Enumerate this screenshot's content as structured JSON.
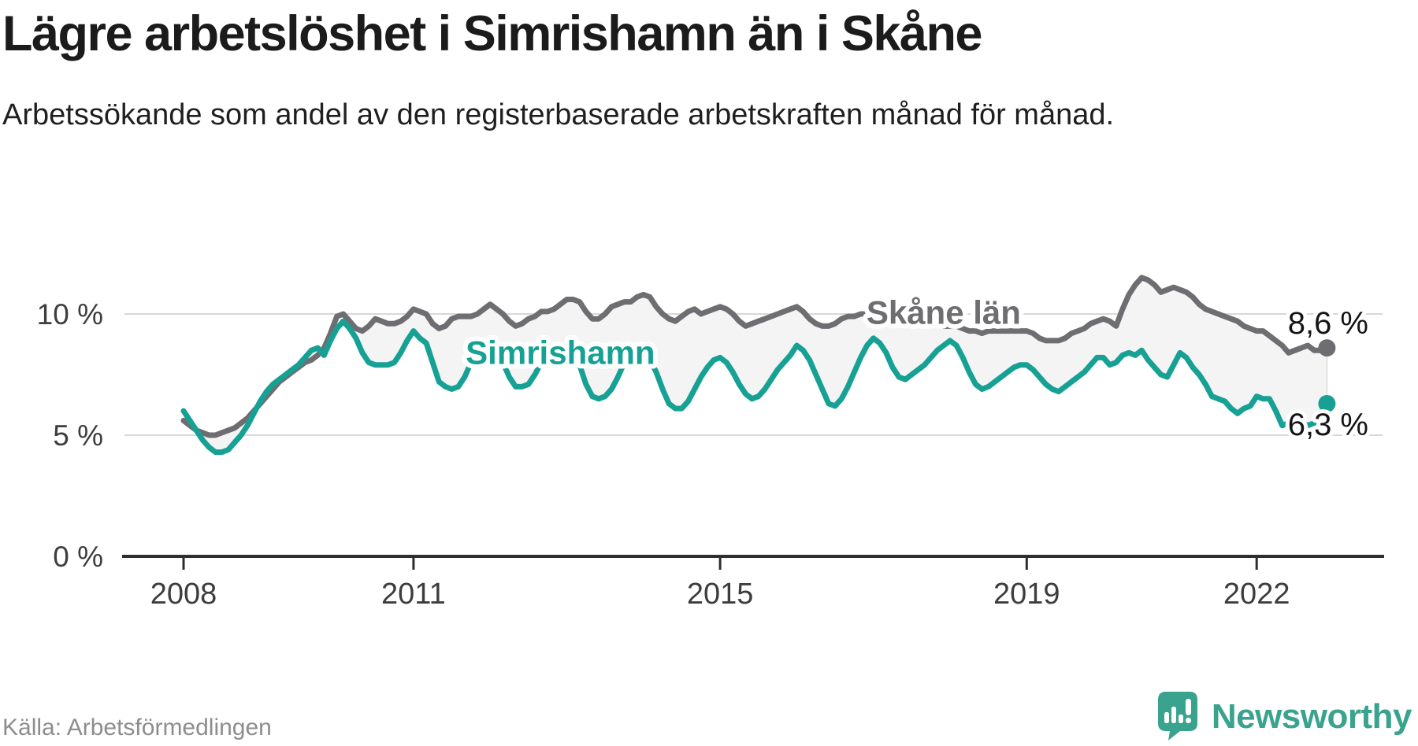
{
  "page": {
    "title": "Lägre arbetslöshet i Simrishamn än i Skåne",
    "subtitle": "Arbetssökande som andel av den registerbaserade arbetskraften månad för månad.",
    "source": "Källa: Arbetsförmedlingen",
    "brand": "Newsworthy",
    "logo_icon": "newsworthy-speech-bubble-chart-icon"
  },
  "chart_data": {
    "type": "line",
    "unit": "%",
    "frequency": "monthly",
    "start_year": 2008,
    "x_tick_years": [
      2008,
      2011,
      2015,
      2019,
      2022
    ],
    "y_ticks": [
      0,
      5,
      10
    ],
    "y_tick_labels": [
      "0 %",
      "5 %",
      "10 %"
    ],
    "ylim": [
      0,
      13
    ],
    "grid": "horizontal",
    "band_fill": "#f4f4f5",
    "axis_color": "#2e2e2e",
    "grid_color": "#d8d8d8",
    "label_color": "#3d3d3d",
    "value_label_color": "#141414",
    "series_labels": [
      {
        "series_index": 0,
        "month_index": 119
      },
      {
        "series_index": 1,
        "month_index": 59
      }
    ],
    "series": [
      {
        "name": "Skåne län",
        "color": "#6e6e72",
        "end_label": "8,6 %",
        "end_value": 8.6,
        "values": [
          5.6,
          5.4,
          5.2,
          5.1,
          5.0,
          5.0,
          5.1,
          5.2,
          5.3,
          5.5,
          5.7,
          6.0,
          6.3,
          6.6,
          6.9,
          7.2,
          7.4,
          7.6,
          7.8,
          8.0,
          8.1,
          8.3,
          8.6,
          9.2,
          9.9,
          10.0,
          9.7,
          9.4,
          9.3,
          9.5,
          9.8,
          9.7,
          9.6,
          9.6,
          9.7,
          9.9,
          10.2,
          10.1,
          10.0,
          9.6,
          9.4,
          9.5,
          9.8,
          9.9,
          9.9,
          9.9,
          10.0,
          10.2,
          10.4,
          10.2,
          10.0,
          9.7,
          9.5,
          9.6,
          9.8,
          9.9,
          10.1,
          10.1,
          10.2,
          10.4,
          10.6,
          10.6,
          10.5,
          10.1,
          9.8,
          9.8,
          10.0,
          10.3,
          10.4,
          10.5,
          10.5,
          10.7,
          10.8,
          10.7,
          10.3,
          10.0,
          9.8,
          9.7,
          9.9,
          10.1,
          10.2,
          10.0,
          10.1,
          10.2,
          10.3,
          10.2,
          10.0,
          9.7,
          9.5,
          9.6,
          9.7,
          9.8,
          9.9,
          10.0,
          10.1,
          10.2,
          10.3,
          10.1,
          9.8,
          9.6,
          9.5,
          9.5,
          9.6,
          9.8,
          9.9,
          9.9,
          10.0,
          10.0,
          10.0,
          9.9,
          9.8,
          9.7,
          9.6,
          9.6,
          9.7,
          9.7,
          9.7,
          9.6,
          9.6,
          9.5,
          9.5,
          9.5,
          9.4,
          9.3,
          9.3,
          9.2,
          9.3,
          9.3,
          9.3,
          9.3,
          9.3,
          9.3,
          9.3,
          9.2,
          9.0,
          8.9,
          8.9,
          8.9,
          9.0,
          9.2,
          9.3,
          9.4,
          9.6,
          9.7,
          9.8,
          9.7,
          9.5,
          10.2,
          10.8,
          11.2,
          11.5,
          11.4,
          11.2,
          10.9,
          11.0,
          11.1,
          11.0,
          10.9,
          10.7,
          10.4,
          10.2,
          10.1,
          10.0,
          9.9,
          9.8,
          9.7,
          9.5,
          9.4,
          9.3,
          9.3,
          9.1,
          8.9,
          8.7,
          8.4,
          8.5,
          8.6,
          8.7,
          8.5,
          8.5,
          8.6
        ]
      },
      {
        "name": "Simrishamn",
        "color": "#16a194",
        "end_label": "6,3 %",
        "end_value": 6.3,
        "values": [
          6.0,
          5.6,
          5.2,
          4.8,
          4.5,
          4.3,
          4.3,
          4.4,
          4.7,
          5.0,
          5.4,
          5.9,
          6.4,
          6.8,
          7.1,
          7.3,
          7.5,
          7.7,
          7.9,
          8.2,
          8.5,
          8.6,
          8.3,
          8.9,
          9.4,
          9.7,
          9.4,
          9.0,
          8.4,
          8.0,
          7.9,
          7.9,
          7.9,
          8.0,
          8.4,
          8.9,
          9.3,
          9.0,
          8.8,
          8.0,
          7.2,
          7.0,
          6.9,
          7.0,
          7.4,
          8.0,
          8.3,
          8.5,
          8.6,
          8.4,
          8.0,
          7.4,
          7.0,
          7.0,
          7.1,
          7.5,
          8.0,
          8.1,
          8.2,
          8.4,
          8.5,
          8.3,
          7.9,
          7.1,
          6.6,
          6.5,
          6.6,
          6.9,
          7.4,
          8.0,
          8.1,
          8.2,
          8.3,
          8.1,
          7.6,
          6.9,
          6.3,
          6.1,
          6.1,
          6.4,
          6.9,
          7.4,
          7.8,
          8.1,
          8.2,
          8.0,
          7.6,
          7.1,
          6.7,
          6.5,
          6.6,
          6.9,
          7.3,
          7.7,
          8.0,
          8.3,
          8.7,
          8.5,
          8.1,
          7.5,
          6.9,
          6.3,
          6.2,
          6.5,
          7.0,
          7.6,
          8.2,
          8.7,
          9.0,
          8.8,
          8.4,
          7.8,
          7.4,
          7.3,
          7.5,
          7.7,
          7.9,
          8.2,
          8.5,
          8.7,
          8.9,
          8.7,
          8.2,
          7.6,
          7.1,
          6.9,
          7.0,
          7.2,
          7.4,
          7.6,
          7.8,
          7.9,
          7.9,
          7.7,
          7.4,
          7.1,
          6.9,
          6.8,
          7.0,
          7.2,
          7.4,
          7.6,
          7.9,
          8.2,
          8.2,
          7.9,
          8.0,
          8.3,
          8.4,
          8.3,
          8.5,
          8.1,
          7.8,
          7.5,
          7.4,
          7.9,
          8.4,
          8.2,
          7.8,
          7.5,
          7.1,
          6.6,
          6.5,
          6.4,
          6.1,
          5.9,
          6.1,
          6.2,
          6.6,
          6.5,
          6.5,
          6.0,
          5.4,
          5.5,
          5.4,
          5.5,
          5.4,
          5.5,
          5.9,
          6.3
        ]
      }
    ]
  }
}
